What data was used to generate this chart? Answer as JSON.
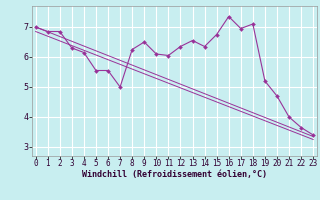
{
  "title": "",
  "xlabel": "Windchill (Refroidissement éolien,°C)",
  "ylabel": "",
  "background_color": "#c8eef0",
  "line_color": "#993399",
  "grid_color": "#aadddd",
  "hours": [
    0,
    1,
    2,
    3,
    4,
    5,
    6,
    7,
    8,
    9,
    10,
    11,
    12,
    13,
    14,
    15,
    16,
    17,
    18,
    19,
    20,
    21,
    22,
    23
  ],
  "data_values": [
    7.0,
    6.85,
    6.85,
    6.3,
    6.15,
    5.55,
    5.55,
    5.0,
    6.25,
    6.5,
    6.1,
    6.05,
    6.35,
    6.55,
    6.35,
    6.75,
    7.35,
    6.95,
    7.1,
    5.2,
    4.7,
    4.0,
    3.65,
    3.4
  ],
  "trend_y_start": 7.0,
  "trend_y_end": 3.35,
  "trend_y2_start": 6.85,
  "trend_y2_end": 3.25,
  "ylim": [
    2.7,
    7.7
  ],
  "xlim": [
    0,
    23
  ],
  "yticks": [
    3,
    4,
    5,
    6,
    7
  ],
  "xticks": [
    0,
    1,
    2,
    3,
    4,
    5,
    6,
    7,
    8,
    9,
    10,
    11,
    12,
    13,
    14,
    15,
    16,
    17,
    18,
    19,
    20,
    21,
    22,
    23
  ],
  "tick_fontsize": 5.5,
  "xlabel_fontsize": 6.0,
  "grid_white_color": "#ffffff"
}
